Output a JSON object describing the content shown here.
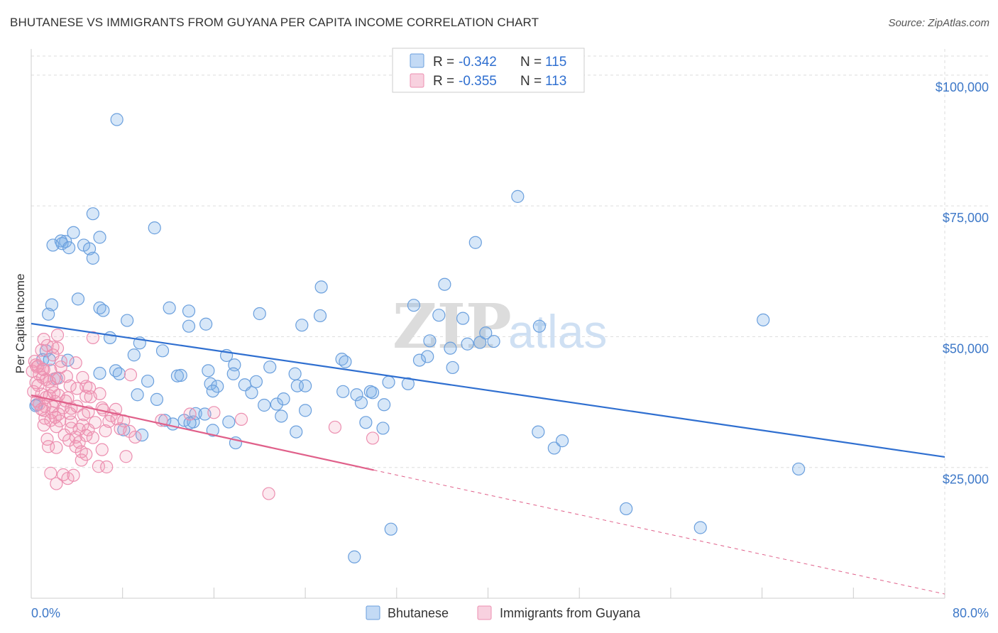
{
  "title": "BHUTANESE VS IMMIGRANTS FROM GUYANA PER CAPITA INCOME CORRELATION CHART",
  "source": "Source: ZipAtlas.com",
  "watermark": {
    "zip": "ZIP",
    "atlas": "atlas"
  },
  "colors": {
    "blue": "#7aaee8",
    "blue_line": "#2f6fd0",
    "pink": "#f09ab8",
    "pink_line": "#e0608a",
    "grid": "#dddddd",
    "tick_text": "#3d78c8"
  },
  "legend": {
    "rows": [
      {
        "r_label": "R = ",
        "r_value": "-0.342",
        "n_label": "N = ",
        "n_value": "115"
      },
      {
        "r_label": "R = ",
        "r_value": "-0.355",
        "n_label": "N = ",
        "n_value": "113"
      }
    ]
  },
  "chart_data": {
    "type": "scatter",
    "title": "BHUTANESE VS IMMIGRANTS FROM GUYANA PER CAPITA INCOME CORRELATION CHART",
    "xlabel": "",
    "ylabel": "Per Capita Income",
    "xlim": [
      0,
      80
    ],
    "ylim": [
      0,
      105000
    ],
    "x_tick_labels": [
      "0.0%",
      "80.0%"
    ],
    "y_ticks": [
      {
        "value": 25000,
        "label": "$25,000"
      },
      {
        "value": 50000,
        "label": "$50,000"
      },
      {
        "value": 75000,
        "label": "$75,000"
      },
      {
        "value": 100000,
        "label": "$100,000"
      }
    ],
    "grid": true,
    "legend_placement": "top-center",
    "series": [
      {
        "name": "Bhutanese",
        "color": "#7aaee8",
        "trend": {
          "x0": 0,
          "y0": 52500,
          "x1": 80,
          "y1": 27000
        },
        "points": [
          [
            7.5,
            91500
          ],
          [
            42.6,
            76800
          ],
          [
            5.4,
            73500
          ],
          [
            10.8,
            70800
          ],
          [
            3.7,
            69900
          ],
          [
            3.0,
            68200
          ],
          [
            2.6,
            68300
          ],
          [
            2.7,
            67800
          ],
          [
            1.9,
            67500
          ],
          [
            3.3,
            67000
          ],
          [
            4.6,
            67500
          ],
          [
            5.1,
            66800
          ],
          [
            5.4,
            65000
          ],
          [
            6.0,
            69000
          ],
          [
            38.9,
            68000
          ],
          [
            36.2,
            60000
          ],
          [
            25.4,
            59500
          ],
          [
            4.1,
            57200
          ],
          [
            1.8,
            56100
          ],
          [
            6.0,
            55500
          ],
          [
            12.1,
            55500
          ],
          [
            13.8,
            54900
          ],
          [
            8.4,
            53100
          ],
          [
            6.3,
            55000
          ],
          [
            1.5,
            54300
          ],
          [
            20.0,
            54400
          ],
          [
            25.3,
            54000
          ],
          [
            33.5,
            56000
          ],
          [
            35.7,
            54100
          ],
          [
            37.8,
            53500
          ],
          [
            44.5,
            52000
          ],
          [
            64.1,
            53200
          ],
          [
            23.7,
            52200
          ],
          [
            13.8,
            52000
          ],
          [
            15.3,
            52400
          ],
          [
            6.9,
            49800
          ],
          [
            9.5,
            48800
          ],
          [
            34.9,
            49200
          ],
          [
            36.7,
            47800
          ],
          [
            38.2,
            48600
          ],
          [
            39.3,
            48900
          ],
          [
            39.8,
            50700
          ],
          [
            40.5,
            49100
          ],
          [
            11.5,
            47300
          ],
          [
            1.3,
            47300
          ],
          [
            1.0,
            45600
          ],
          [
            17.1,
            46400
          ],
          [
            27.2,
            45700
          ],
          [
            27.5,
            45200
          ],
          [
            34.0,
            45500
          ],
          [
            34.7,
            46200
          ],
          [
            7.4,
            43500
          ],
          [
            7.7,
            42900
          ],
          [
            12.8,
            42500
          ],
          [
            13.1,
            42600
          ],
          [
            15.5,
            43500
          ],
          [
            17.8,
            44600
          ],
          [
            20.9,
            44200
          ],
          [
            33.0,
            41000
          ],
          [
            31.3,
            41300
          ],
          [
            36.9,
            44100
          ],
          [
            17.7,
            42900
          ],
          [
            23.1,
            42900
          ],
          [
            10.2,
            41500
          ],
          [
            15.7,
            41000
          ],
          [
            16.3,
            40500
          ],
          [
            19.7,
            41400
          ],
          [
            18.7,
            40800
          ],
          [
            23.3,
            40600
          ],
          [
            24.0,
            40600
          ],
          [
            27.3,
            39500
          ],
          [
            28.5,
            38900
          ],
          [
            29.7,
            39500
          ],
          [
            29.9,
            39300
          ],
          [
            19.3,
            39300
          ],
          [
            15.9,
            39600
          ],
          [
            9.3,
            38900
          ],
          [
            11.0,
            38000
          ],
          [
            21.5,
            37100
          ],
          [
            22.1,
            38100
          ],
          [
            28.9,
            37400
          ],
          [
            30.9,
            37000
          ],
          [
            0.5,
            37000
          ],
          [
            0.4,
            36800
          ],
          [
            11.7,
            34000
          ],
          [
            13.4,
            34000
          ],
          [
            14.4,
            35300
          ],
          [
            15.2,
            35200
          ],
          [
            20.4,
            36900
          ],
          [
            21.9,
            34800
          ],
          [
            24.0,
            35900
          ],
          [
            12.4,
            33300
          ],
          [
            14.2,
            33700
          ],
          [
            8.1,
            32200
          ],
          [
            9.7,
            31200
          ],
          [
            15.9,
            32100
          ],
          [
            17.3,
            33700
          ],
          [
            23.2,
            31800
          ],
          [
            29.3,
            33600
          ],
          [
            30.8,
            32500
          ],
          [
            44.4,
            31800
          ],
          [
            45.8,
            28700
          ],
          [
            46.5,
            30100
          ],
          [
            17.9,
            29700
          ],
          [
            67.2,
            24700
          ],
          [
            52.1,
            17100
          ],
          [
            58.6,
            13500
          ],
          [
            31.5,
            13200
          ],
          [
            28.3,
            7900
          ],
          [
            6.0,
            43000
          ],
          [
            3.2,
            45500
          ],
          [
            13.9,
            33500
          ],
          [
            9.0,
            46500
          ],
          [
            1.6,
            45600
          ],
          [
            2.2,
            42000
          ]
        ]
      },
      {
        "name": "Immigrants from Guyana",
        "color": "#f09ab8",
        "trend": {
          "x0": 0,
          "y0": 38800,
          "x1": 30,
          "y1": 24500,
          "dash_x1": 80,
          "dash_y1": 800
        },
        "points": [
          [
            2.3,
            50300
          ],
          [
            5.4,
            49800
          ],
          [
            1.1,
            49500
          ],
          [
            1.4,
            48300
          ],
          [
            1.9,
            48000
          ],
          [
            2.3,
            47800
          ],
          [
            0.9,
            47400
          ],
          [
            1.9,
            46500
          ],
          [
            2.6,
            45300
          ],
          [
            3.9,
            45000
          ],
          [
            0.3,
            45300
          ],
          [
            0.4,
            44600
          ],
          [
            0.5,
            44200
          ],
          [
            1.1,
            43700
          ],
          [
            1.7,
            43600
          ],
          [
            0.1,
            43400
          ],
          [
            0.7,
            42800
          ],
          [
            1.0,
            42200
          ],
          [
            1.3,
            41800
          ],
          [
            2.0,
            41900
          ],
          [
            2.4,
            42100
          ],
          [
            0.4,
            41200
          ],
          [
            1.6,
            41400
          ],
          [
            4.5,
            42200
          ],
          [
            8.7,
            42700
          ],
          [
            3.4,
            40600
          ],
          [
            4.8,
            40500
          ],
          [
            4.0,
            40100
          ],
          [
            5.1,
            40200
          ],
          [
            0.6,
            40700
          ],
          [
            0.2,
            39500
          ],
          [
            0.9,
            39000
          ],
          [
            1.6,
            38700
          ],
          [
            2.4,
            38800
          ],
          [
            2.1,
            37600
          ],
          [
            1.3,
            38400
          ],
          [
            3.2,
            38300
          ],
          [
            4.8,
            38600
          ],
          [
            0.5,
            37700
          ],
          [
            0.7,
            37100
          ],
          [
            1.2,
            36700
          ],
          [
            1.9,
            36600
          ],
          [
            2.8,
            36400
          ],
          [
            3.5,
            36300
          ],
          [
            4.0,
            36700
          ],
          [
            6.2,
            36400
          ],
          [
            6.3,
            36000
          ],
          [
            7.4,
            36100
          ],
          [
            1.1,
            35900
          ],
          [
            1.8,
            35500
          ],
          [
            2.4,
            35200
          ],
          [
            3.4,
            35300
          ],
          [
            4.6,
            35100
          ],
          [
            5.0,
            35600
          ],
          [
            7.0,
            34900
          ],
          [
            13.9,
            35200
          ],
          [
            16.0,
            35500
          ],
          [
            18.4,
            34200
          ],
          [
            1.2,
            34400
          ],
          [
            1.7,
            34000
          ],
          [
            2.5,
            33900
          ],
          [
            3.5,
            33700
          ],
          [
            4.5,
            33100
          ],
          [
            5.6,
            33600
          ],
          [
            6.8,
            33800
          ],
          [
            7.5,
            34300
          ],
          [
            8.1,
            33900
          ],
          [
            11.4,
            34000
          ],
          [
            1.1,
            33100
          ],
          [
            2.2,
            32800
          ],
          [
            3.5,
            32500
          ],
          [
            4.2,
            32300
          ],
          [
            5.0,
            32200
          ],
          [
            6.5,
            32000
          ],
          [
            7.8,
            32400
          ],
          [
            8.6,
            31900
          ],
          [
            9.1,
            30800
          ],
          [
            2.9,
            31200
          ],
          [
            3.9,
            30800
          ],
          [
            5.4,
            30700
          ],
          [
            3.3,
            30200
          ],
          [
            4.2,
            29800
          ],
          [
            1.4,
            30400
          ],
          [
            1.5,
            29000
          ],
          [
            3.9,
            29000
          ],
          [
            2.2,
            28800
          ],
          [
            6.2,
            28400
          ],
          [
            4.4,
            28000
          ],
          [
            4.8,
            27500
          ],
          [
            8.3,
            27100
          ],
          [
            4.4,
            26400
          ],
          [
            5.9,
            25200
          ],
          [
            6.6,
            25100
          ],
          [
            1.7,
            23900
          ],
          [
            2.8,
            23600
          ],
          [
            3.2,
            22900
          ],
          [
            3.7,
            23500
          ],
          [
            2.2,
            21900
          ],
          [
            20.8,
            20000
          ],
          [
            26.6,
            32700
          ],
          [
            29.9,
            30600
          ],
          [
            1.0,
            43800
          ],
          [
            0.6,
            44400
          ],
          [
            1.8,
            40400
          ],
          [
            2.0,
            39300
          ],
          [
            3.0,
            37700
          ],
          [
            5.2,
            38500
          ],
          [
            6.0,
            39100
          ],
          [
            3.1,
            42400
          ],
          [
            2.6,
            44200
          ],
          [
            4.8,
            31100
          ],
          [
            0.9,
            36100
          ],
          [
            2.1,
            34600
          ]
        ]
      }
    ]
  }
}
